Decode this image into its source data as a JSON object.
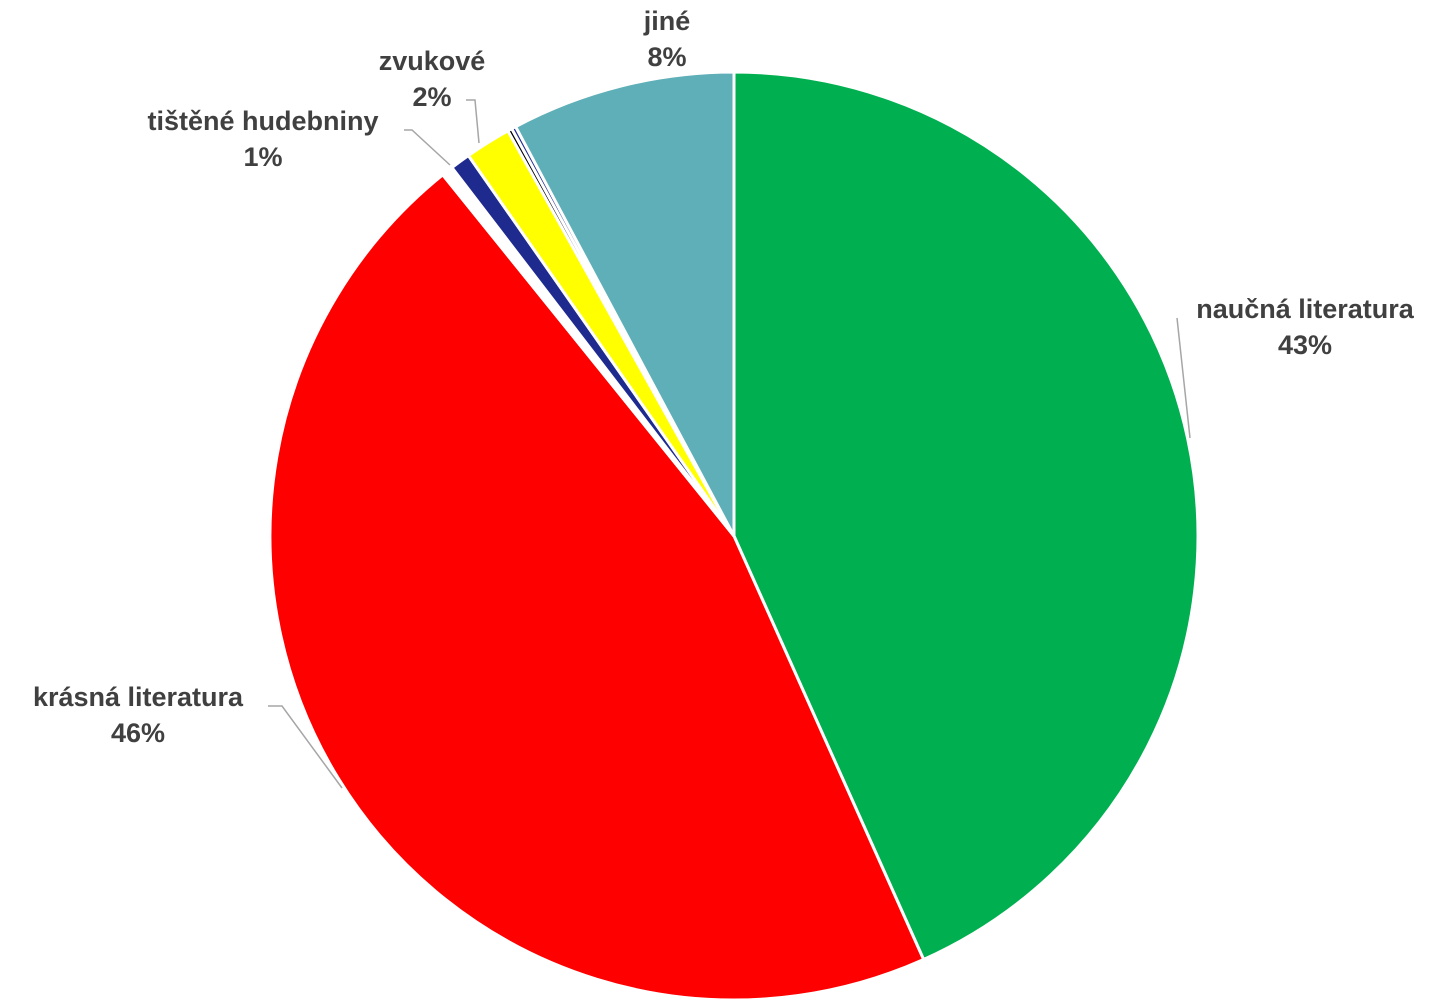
{
  "chart_data": {
    "type": "pie",
    "start_angle_deg": 0,
    "direction": "clockwise",
    "slices": [
      {
        "name": "naučná literatura",
        "value": 43.3,
        "label": "43%",
        "color": "#00b050",
        "labeled": true
      },
      {
        "name": "krásná literatura",
        "value": 45.9,
        "label": "46%",
        "color": "#ff0000",
        "labeled": true
      },
      {
        "name": "",
        "value": 0.4,
        "label": "",
        "color": "#ffffff",
        "labeled": false
      },
      {
        "name": "tištěné hudebniny",
        "value": 0.7,
        "label": "1%",
        "color": "#1f2a8f",
        "labeled": true
      },
      {
        "name": "zvukové",
        "value": 1.6,
        "label": "2%",
        "color": "#ffff00",
        "labeled": true
      },
      {
        "name": "",
        "value": 0.15,
        "label": "",
        "color": "#000000",
        "labeled": false
      },
      {
        "name": "",
        "value": 0.15,
        "label": "",
        "color": "#1f2a8f",
        "labeled": false
      },
      {
        "name": "jiné",
        "value": 7.8,
        "label": "8%",
        "color": "#5eafb8",
        "labeled": true
      }
    ]
  }
}
